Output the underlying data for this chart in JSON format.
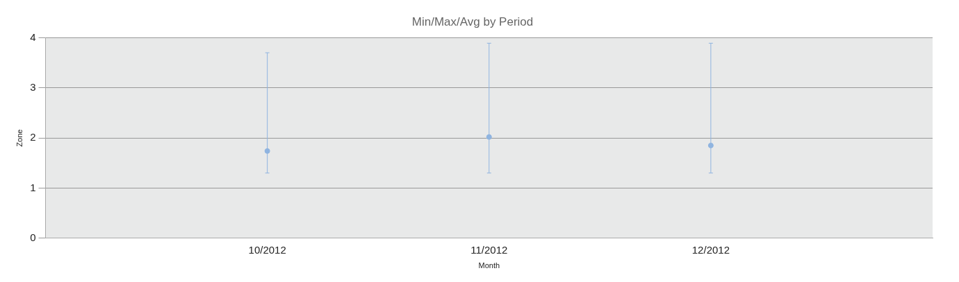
{
  "chart_data": {
    "type": "scatter",
    "title": "Min/Max/Avg by Period",
    "xlabel": "Month",
    "ylabel": "Zone",
    "categories": [
      null,
      "10/2012",
      "11/2012",
      "12/2012",
      null
    ],
    "values": [
      null,
      1.74,
      2.02,
      1.85,
      null
    ],
    "errors": [
      null,
      [
        1.3,
        3.7
      ],
      [
        1.3,
        3.89
      ],
      [
        1.3,
        3.89
      ],
      null
    ],
    "color": "#8fb4e0",
    "marker": "circle",
    "ylim": [
      0,
      4
    ],
    "yticks": [
      0,
      1,
      2,
      3,
      4
    ],
    "grid": "y",
    "legend": false
  }
}
